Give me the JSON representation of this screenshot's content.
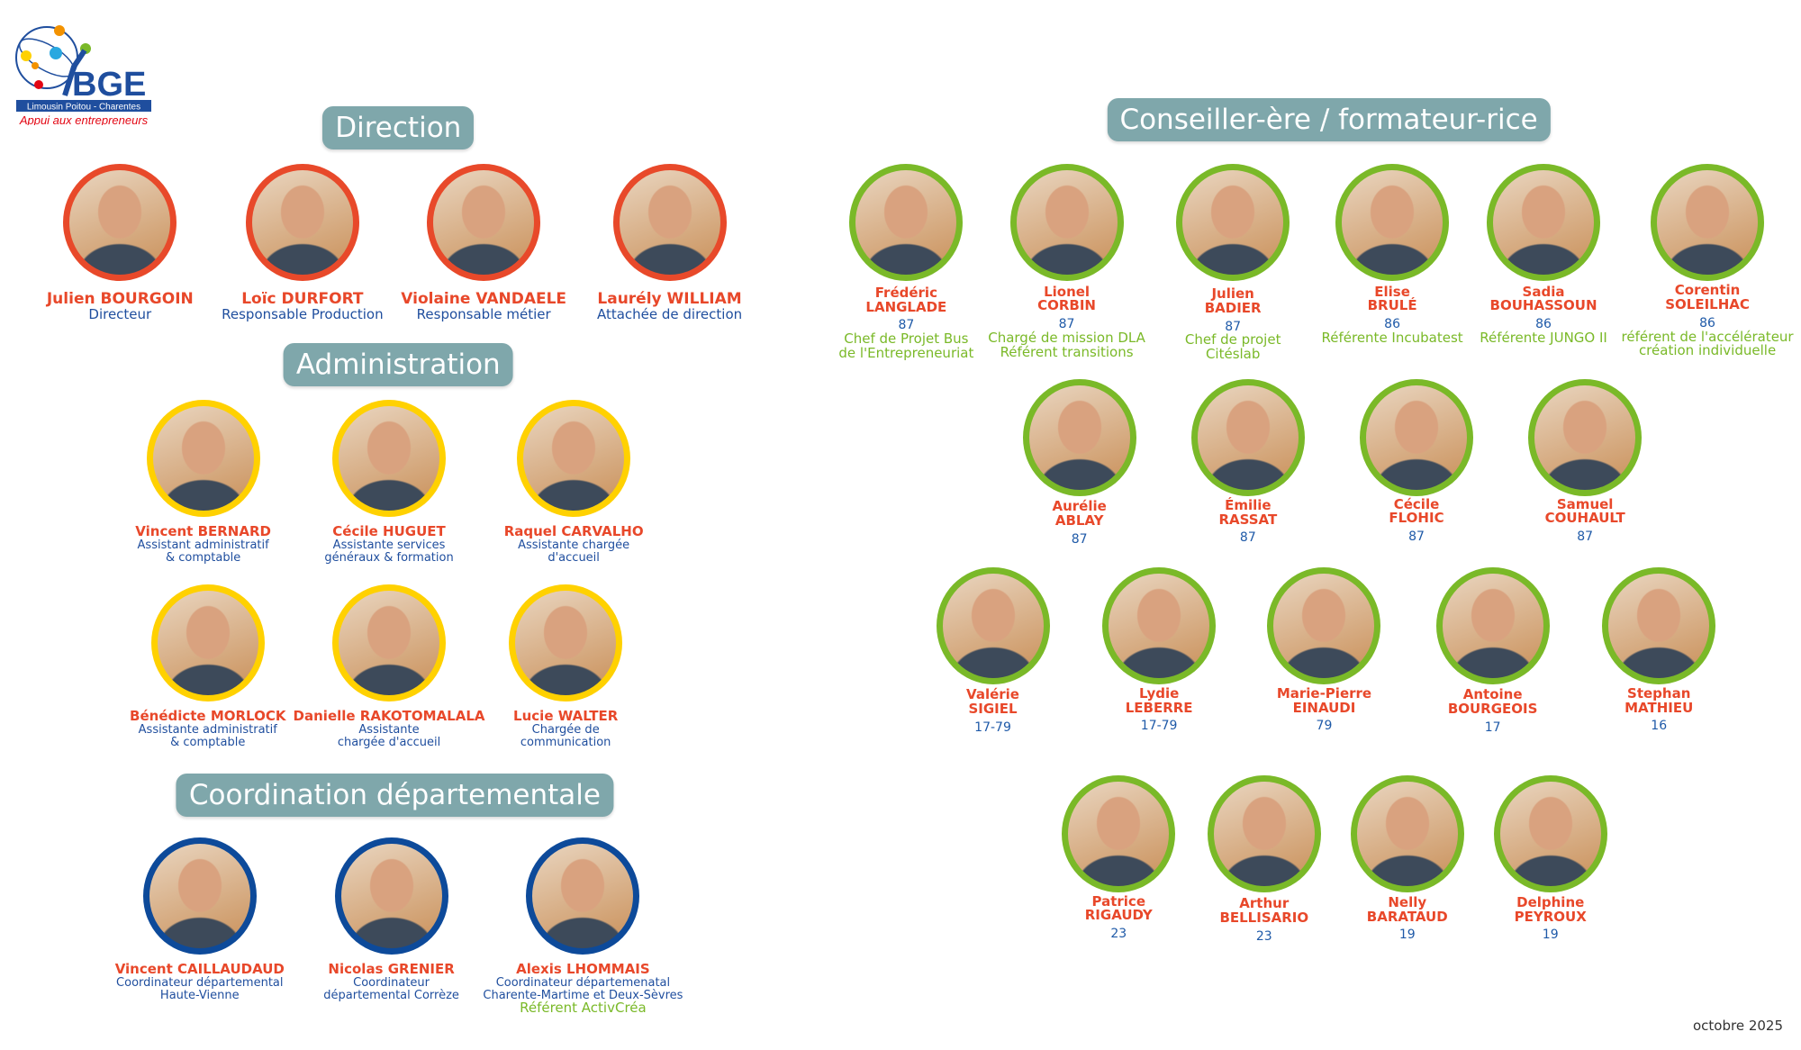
{
  "logo": {
    "brand": "BGE",
    "region": "Limousin  Poitou - Charentes",
    "tagline": "Appui aux entrepreneurs"
  },
  "colors": {
    "direction": "#E8492A",
    "administration": "#FFD100",
    "coordination": "#0D4A9A",
    "conseiller": "#7AB928",
    "name": "#E8482A",
    "role": "#1F4E9E",
    "header_bg": "#7FA7AB"
  },
  "sections": {
    "direction": {
      "title": "Direction",
      "members": [
        {
          "name": [
            "Julien BOURGOIN"
          ],
          "role": [
            "Directeur"
          ]
        },
        {
          "name": [
            "Loïc DURFORT"
          ],
          "role": [
            "Responsable Production"
          ]
        },
        {
          "name": [
            "Violaine VANDAELE"
          ],
          "role": [
            "Responsable métier"
          ]
        },
        {
          "name": [
            "Laurély WILLIAM"
          ],
          "role": [
            "Attachée de direction"
          ]
        }
      ]
    },
    "administration": {
      "title": "Administration",
      "members": [
        {
          "name": [
            "Vincent BERNARD"
          ],
          "role": [
            "Assistant administratif",
            "& comptable"
          ]
        },
        {
          "name": [
            "Cécile HUGUET"
          ],
          "role": [
            "Assistante services",
            "généraux & formation"
          ]
        },
        {
          "name": [
            "Raquel CARVALHO"
          ],
          "role": [
            "Assistante chargée",
            "d'accueil"
          ]
        },
        {
          "name": [
            "Bénédicte MORLOCK"
          ],
          "role": [
            "Assistante administratif",
            "& comptable"
          ]
        },
        {
          "name": [
            "Danielle RAKOTOMALALA"
          ],
          "role": [
            "Assistante",
            "chargée d'accueil"
          ]
        },
        {
          "name": [
            "Lucie WALTER"
          ],
          "role": [
            "Chargée de",
            "communication"
          ]
        }
      ]
    },
    "coordination": {
      "title": "Coordination départementale",
      "members": [
        {
          "name": [
            "Vincent CAILLAUDAUD"
          ],
          "role": [
            "Coordinateur départemental",
            "Haute-Vienne"
          ]
        },
        {
          "name": [
            "Nicolas GRENIER"
          ],
          "role": [
            "Coordinateur",
            "départemental Corrèze"
          ]
        },
        {
          "name": [
            "Alexis LHOMMAIS"
          ],
          "role": [
            "Coordinateur départemenatal",
            "Charente-Martime et Deux-Sèvres"
          ],
          "extra": [
            "Référent ActivCréa"
          ]
        }
      ]
    },
    "conseiller": {
      "title": "Conseiller-ère / formateur-rice",
      "members": [
        {
          "name": [
            "Frédéric",
            "LANGLADE"
          ],
          "dept": "87",
          "extra": [
            "Chef de Projet Bus",
            "de l'Entrepreneuriat"
          ]
        },
        {
          "name": [
            "Lionel",
            "CORBIN"
          ],
          "dept": "87",
          "extra": [
            "Chargé de mission DLA",
            "Référent transitions"
          ]
        },
        {
          "name": [
            "Julien",
            "BADIER"
          ],
          "dept": "87",
          "extra": [
            "Chef de projet",
            "Citéslab"
          ]
        },
        {
          "name": [
            "Elise",
            "BRULÉ"
          ],
          "dept": "86",
          "extra": [
            "Référente Incubatest"
          ]
        },
        {
          "name": [
            "Sadia",
            "BOUHASSOUN"
          ],
          "dept": "86",
          "extra": [
            "Référente JUNGO II"
          ]
        },
        {
          "name": [
            "Corentin",
            "SOLEILHAC"
          ],
          "dept": "86",
          "extra": [
            "référent de l'accélérateur",
            "création individuelle"
          ]
        },
        {
          "name": [
            "Aurélie",
            "ABLAY"
          ],
          "dept": "87"
        },
        {
          "name": [
            "Émilie",
            "RASSAT"
          ],
          "dept": "87"
        },
        {
          "name": [
            "Cécile",
            "FLOHIC"
          ],
          "dept": "87"
        },
        {
          "name": [
            "Samuel",
            "COUHAULT"
          ],
          "dept": "87"
        },
        {
          "name": [
            "Valérie",
            "SIGIEL"
          ],
          "dept": "17-79"
        },
        {
          "name": [
            "Lydie",
            "LEBERRE"
          ],
          "dept": "17-79"
        },
        {
          "name": [
            "Marie-Pierre",
            "EINAUDI"
          ],
          "dept": "79"
        },
        {
          "name": [
            "Antoine",
            "BOURGEOIS"
          ],
          "dept": "17"
        },
        {
          "name": [
            "Stephan",
            "MATHIEU"
          ],
          "dept": "16"
        },
        {
          "name": [
            "Patrice",
            "RIGAUDY"
          ],
          "dept": "23"
        },
        {
          "name": [
            "Arthur",
            "BELLISARIO"
          ],
          "dept": "23"
        },
        {
          "name": [
            "Nelly",
            "BARATAUD"
          ],
          "dept": "19"
        },
        {
          "name": [
            "Delphine",
            "PEYROUX"
          ],
          "dept": "19"
        }
      ]
    }
  },
  "footer": {
    "date": "octobre 2025"
  }
}
